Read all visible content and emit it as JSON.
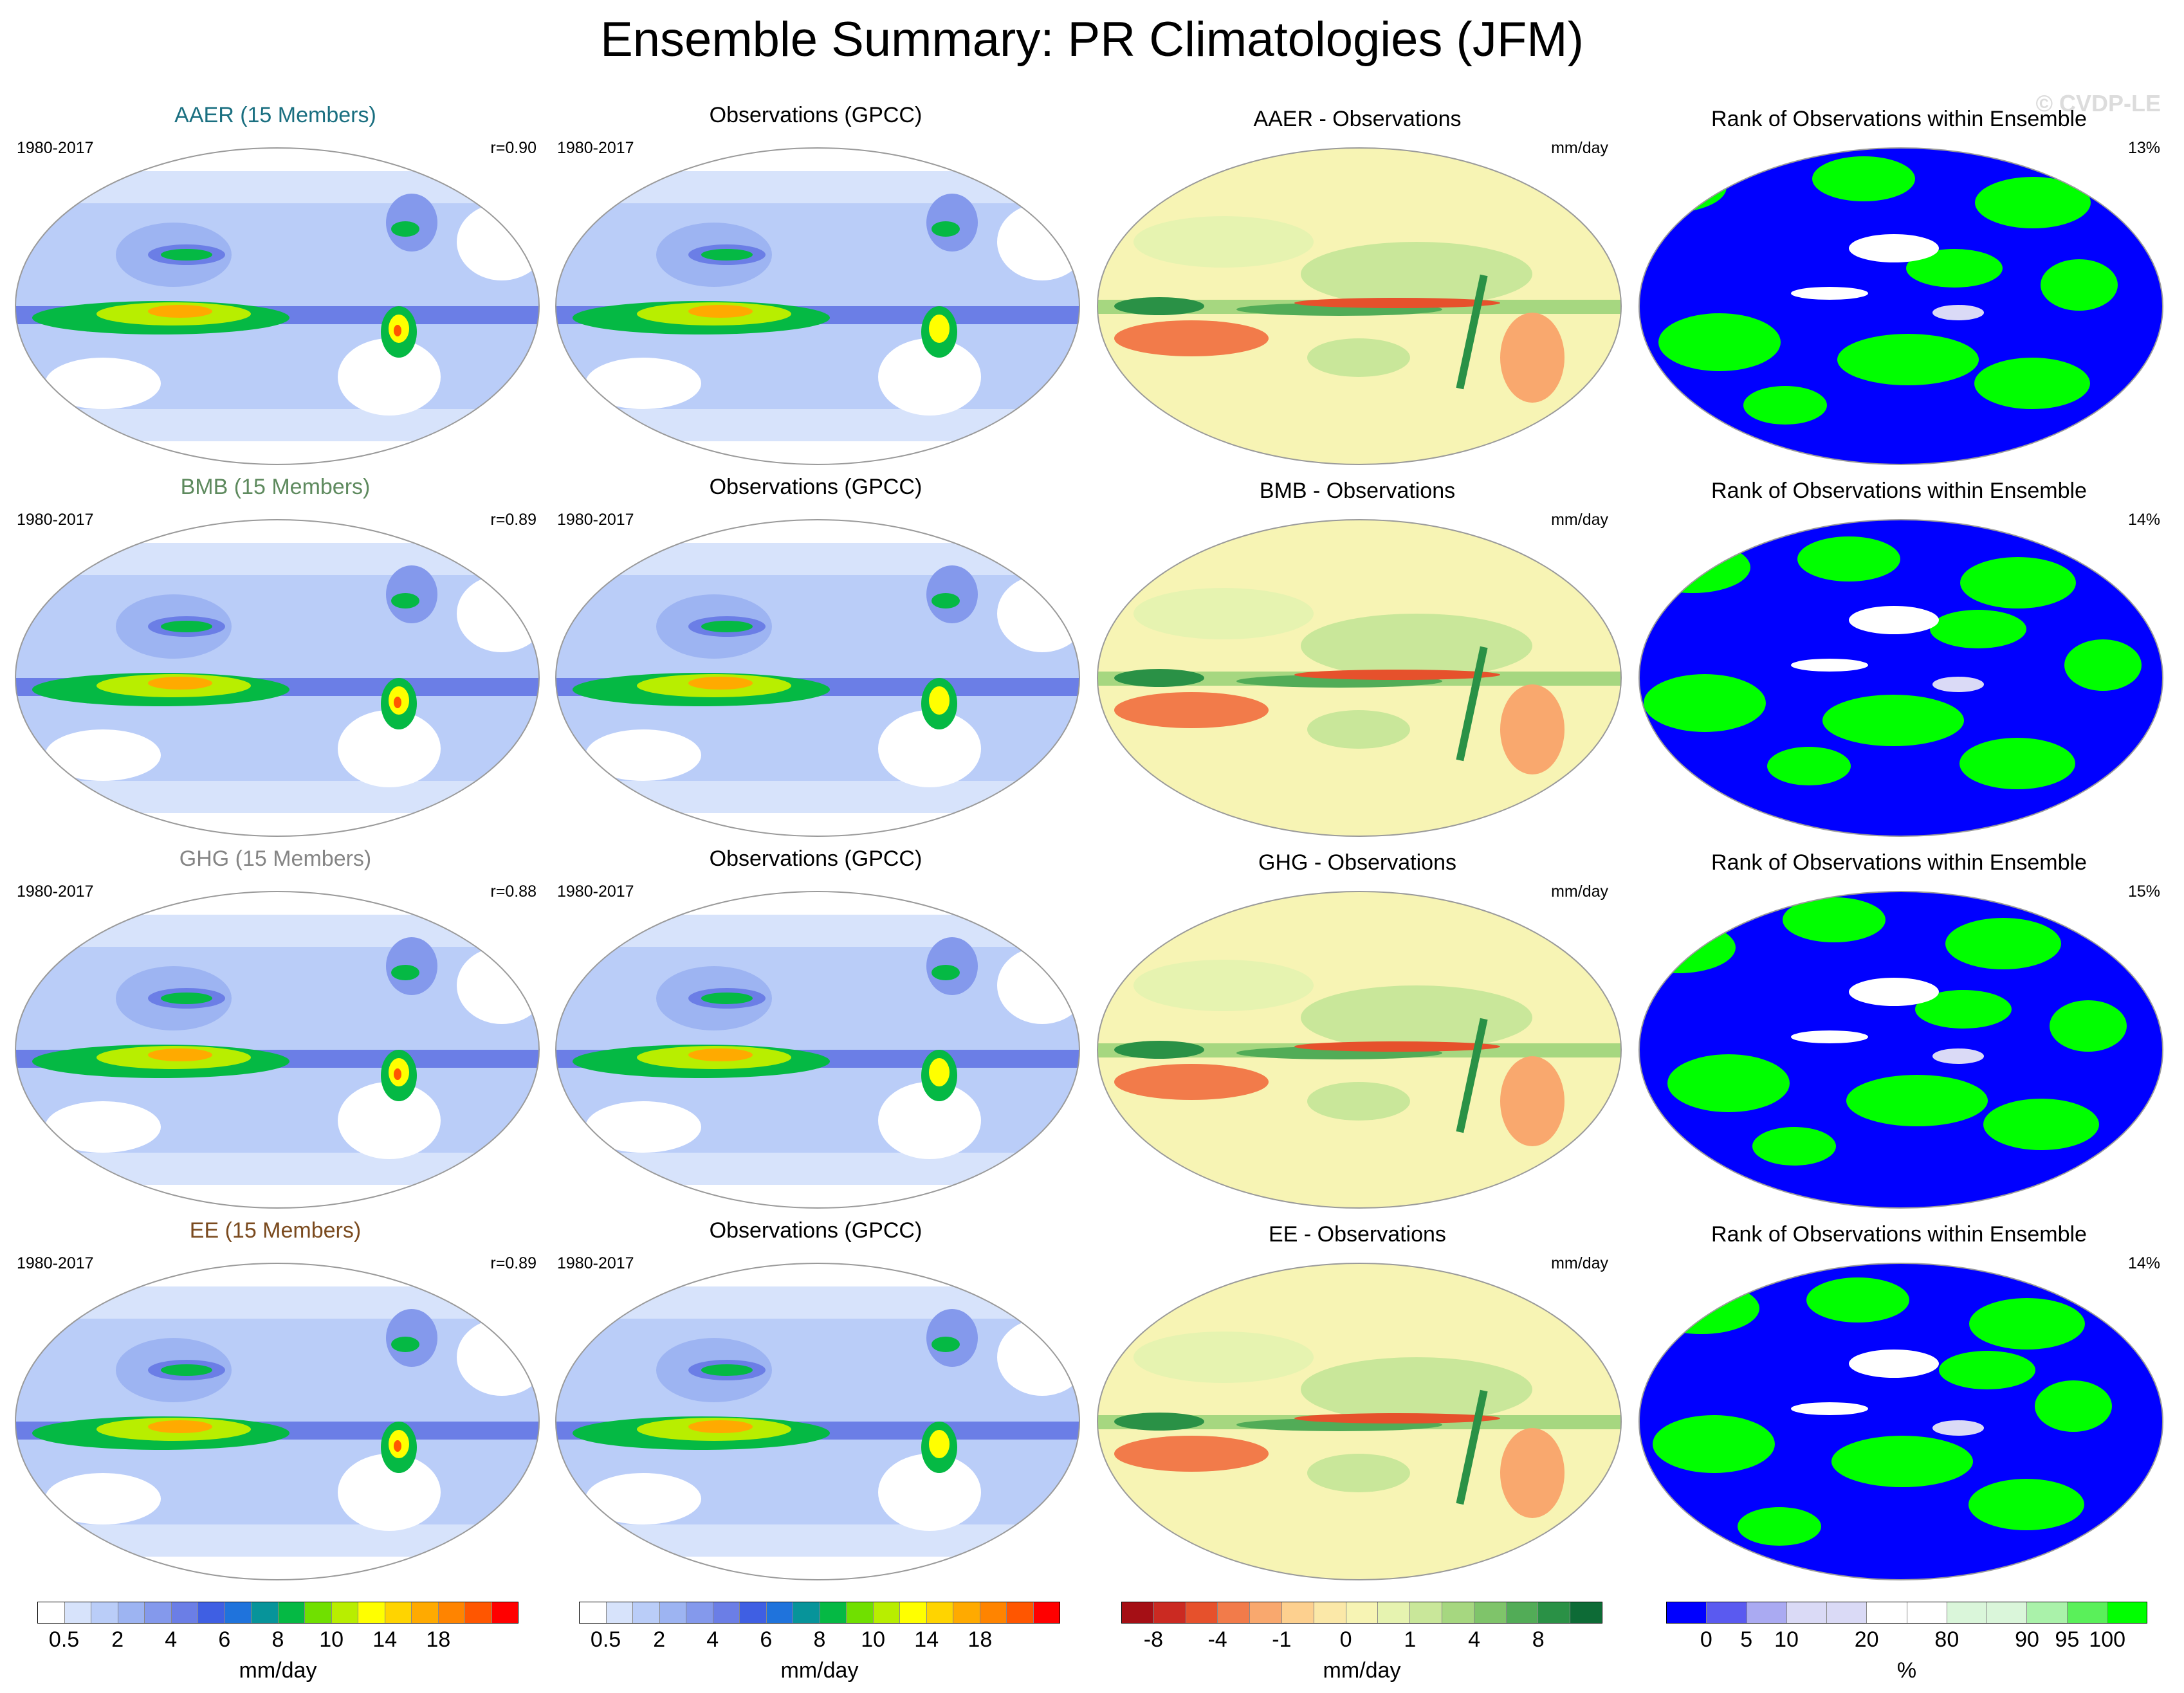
{
  "title": "Ensemble Summary: PR Climatologies (JFM)",
  "watermark": "© CVDP-LE",
  "colors": {
    "aaer": "#1a6f80",
    "bmb": "#5e8a5e",
    "ghg": "#858585",
    "ee": "#7a4a1e",
    "black": "#000000"
  },
  "rows": [
    {
      "ens_title": "AAER (15 Members)",
      "ens_period": "1980-2017",
      "ens_r": "r=0.90",
      "obs_title": "Observations (GPCC)",
      "obs_period": "1980-2017",
      "diff_title": "AAER - Observations",
      "diff_units": "mm/day",
      "rank_title": "Rank of Observations within Ensemble",
      "rank_pct": "13%"
    },
    {
      "ens_title": "BMB (15 Members)",
      "ens_period": "1980-2017",
      "ens_r": "r=0.89",
      "obs_title": "Observations (GPCC)",
      "obs_period": "1980-2017",
      "diff_title": "BMB - Observations",
      "diff_units": "mm/day",
      "rank_title": "Rank of Observations within Ensemble",
      "rank_pct": "14%"
    },
    {
      "ens_title": "GHG (15 Members)",
      "ens_period": "1980-2017",
      "ens_r": "r=0.88",
      "obs_title": "Observations (GPCC)",
      "obs_period": "1980-2017",
      "diff_title": "GHG - Observations",
      "diff_units": "mm/day",
      "rank_title": "Rank of Observations within Ensemble",
      "rank_pct": "15%"
    },
    {
      "ens_title": "EE (15 Members)",
      "ens_period": "1980-2017",
      "ens_r": "r=0.89",
      "obs_title": "Observations (GPCC)",
      "obs_period": "1980-2017",
      "diff_title": "EE - Observations",
      "diff_units": "mm/day",
      "rank_title": "Rank of Observations within Ensemble",
      "rank_pct": "14%"
    }
  ],
  "colorbars": {
    "precip": {
      "colors": [
        "#ffffff",
        "#d7e3fb",
        "#bacdf8",
        "#9db4f2",
        "#8499ec",
        "#6b7ee6",
        "#3f5fe3",
        "#1f73dc",
        "#07949a",
        "#05b944",
        "#70e000",
        "#b8ee00",
        "#ffff00",
        "#ffd400",
        "#ffaa00",
        "#ff8400",
        "#ff5600",
        "#ff0000"
      ],
      "ticks": [
        "0.5",
        "2",
        "4",
        "6",
        "8",
        "10",
        "14",
        "18"
      ],
      "tick_index": [
        1,
        3,
        5,
        7,
        9,
        11,
        13,
        15
      ],
      "units": "mm/day"
    },
    "diff": {
      "colors": [
        "#a50f15",
        "#cb2a22",
        "#e6512c",
        "#f27b4a",
        "#f9a86e",
        "#fdd08f",
        "#fbe8a8",
        "#f7f4b4",
        "#e6f3b0",
        "#c9e79a",
        "#a6d780",
        "#7fc46a",
        "#52ac57",
        "#2a9146",
        "#0d6b36"
      ],
      "ticks": [
        "-8",
        "-4",
        "-1",
        "0",
        "1",
        "4",
        "8"
      ],
      "tick_index": [
        1,
        3,
        5,
        7,
        9,
        11,
        13
      ],
      "units": "mm/day"
    },
    "rank": {
      "colors": [
        "#0000ff",
        "#5a5af0",
        "#aaaaf2",
        "#dadaf6",
        "#dadaf6",
        "#ffffff",
        "#ffffff",
        "#daf6da",
        "#daf6da",
        "#aaf2aa",
        "#5af05a",
        "#00ff00"
      ],
      "ticks": [
        "0",
        "5",
        "10",
        "20",
        "80",
        "90",
        "95",
        "100"
      ],
      "tick_index": [
        1,
        2,
        3,
        5,
        7,
        9,
        10,
        11
      ],
      "units": "%"
    }
  }
}
